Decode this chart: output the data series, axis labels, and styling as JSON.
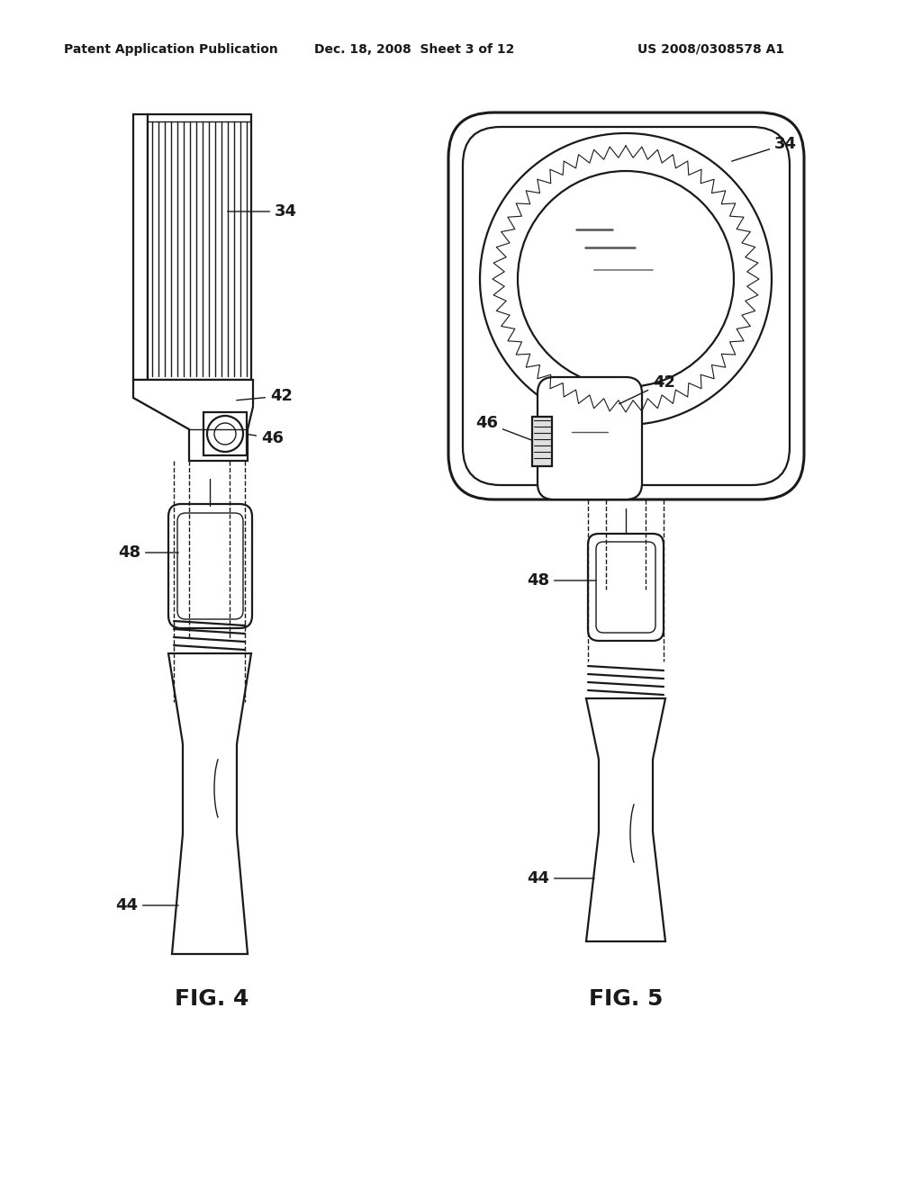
{
  "bg_color": "#ffffff",
  "line_color": "#1a1a1a",
  "header_left": "Patent Application Publication",
  "header_mid": "Dec. 18, 2008  Sheet 3 of 12",
  "header_right": "US 2008/0308578 A1",
  "fig4_label": "FIG. 4",
  "fig5_label": "FIG. 5"
}
